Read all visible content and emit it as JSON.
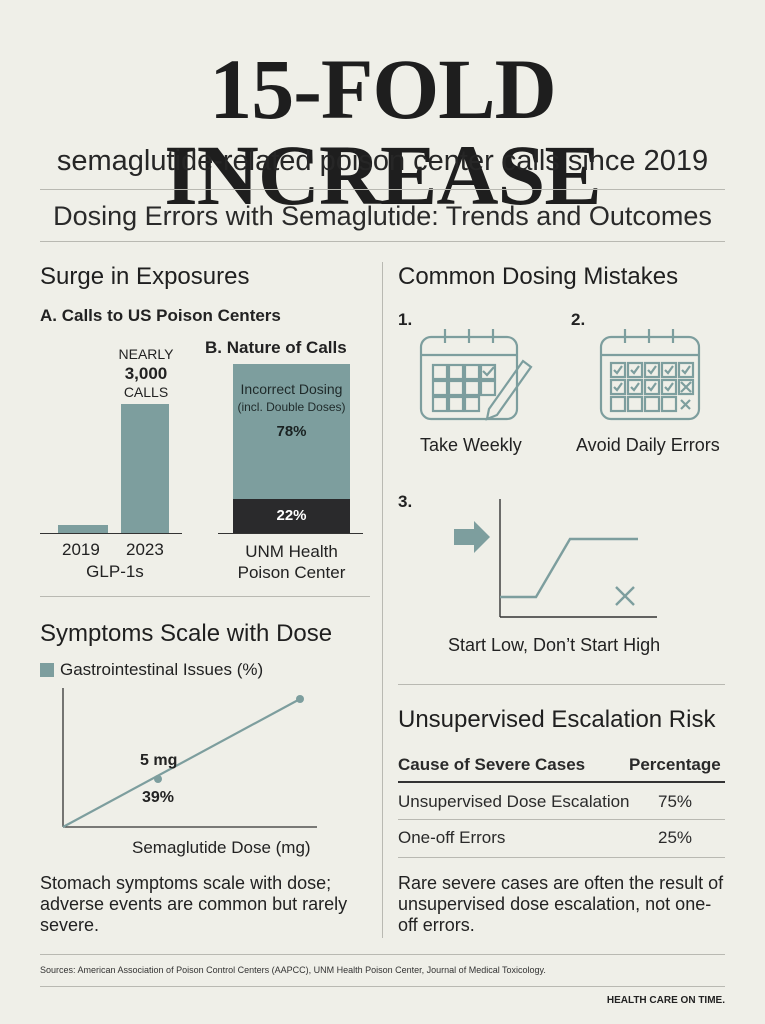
{
  "header": {
    "headline": "15-FOLD INCREASE",
    "subhead": "semaglutide-related poison center calls since 2019",
    "title": "Dosing Errors with Semaglutide: Trends and Outcomes"
  },
  "surge": {
    "title": "Surge in Exposures",
    "chart_a_title": "A. Calls to US Poison Centers",
    "annotation_line1": "NEARLY",
    "annotation_line2": "3,000",
    "annotation_line3": "CALLS",
    "x_label_2019": "2019",
    "x_label_2023": "2023",
    "x_sub": "GLP-1s",
    "chart_b_title": "B. Nature of Calls",
    "incorrect_label": "Incorrect Dosing",
    "incorrect_sub": "(incl. Double Doses)",
    "incorrect_pct": "78%",
    "other_pct": "22%",
    "source_line1": "UNM Health",
    "source_line2": "Poison Center"
  },
  "symptoms": {
    "title": "Symptoms Scale with Dose",
    "legend": "Gastrointestinal Issues (%)",
    "point_dose": "5 mg",
    "point_pct": "39%",
    "x_label": "Semaglutide Dose (mg)",
    "note": "Stomach symptoms scale with dose; adverse events are common but rarely severe."
  },
  "mistakes": {
    "title": "Common Dosing Mistakes",
    "n1": "1.",
    "n2": "2.",
    "n3": "3.",
    "cap1": "Take Weekly",
    "cap2": "Avoid Daily Errors",
    "cap3": "Start Low, Don’t Start High"
  },
  "escalation": {
    "title": "Unsupervised Escalation Risk",
    "col1": "Cause of Severe Cases",
    "col2": "Percentage",
    "rows": [
      {
        "cause": "Unsupervised Dose Escalation",
        "pct": "75%"
      },
      {
        "cause": "One-off Errors",
        "pct": "25%"
      }
    ],
    "note": "Rare severe cases are often the result of unsupervised dose escalation, not one-off errors."
  },
  "footer": {
    "sources": "Sources: American Association of Poison Control Centers (AAPCC), UNM Health Poison Center, Journal of Medical Toxicology.",
    "brand": "HEALTH CARE ON TIME."
  },
  "colors": {
    "teal": "#7d9e9e",
    "dark": "#2a2a2c",
    "background": "#efefe8"
  },
  "chart_data": [
    {
      "type": "bar",
      "title": "A. Calls to US Poison Centers",
      "categories": [
        "2019",
        "2023"
      ],
      "xlabel": "GLP-1s",
      "values": [
        200,
        3000
      ],
      "annotations": [
        "NEARLY 3,000 CALLS"
      ]
    },
    {
      "type": "bar",
      "title": "B. Nature of Calls",
      "categories": [
        "UNM Health Poison Center"
      ],
      "stacked": true,
      "series": [
        {
          "name": "Incorrect Dosing (incl. Double Doses)",
          "values": [
            78
          ]
        },
        {
          "values": [
            22
          ]
        }
      ]
    },
    {
      "type": "line",
      "title": "Symptoms Scale with Dose",
      "xlabel": "Semaglutide Dose (mg)",
      "series": [
        {
          "name": "Gastrointestinal Issues (%)",
          "points": [
            {
              "x": 5,
              "y": 39
            }
          ]
        }
      ]
    }
  ]
}
